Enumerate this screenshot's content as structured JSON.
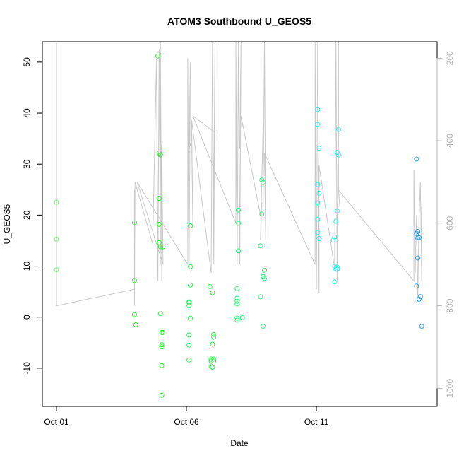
{
  "chart_data": {
    "type": "scatter",
    "title": "ATOM3 Southbound U_GEOS5",
    "xlabel": "Date",
    "ylabel": "U_GEOS5",
    "x_ticks": [
      {
        "day": 1.0,
        "label": "Oct 01"
      },
      {
        "day": 6.0,
        "label": "Oct 06"
      },
      {
        "day": 11.0,
        "label": "Oct 11"
      }
    ],
    "xlim": [
      1.0,
      15.1
    ],
    "ylim": [
      -17.5,
      54
    ],
    "y_ticks": [
      -10,
      0,
      10,
      20,
      30,
      40,
      50
    ],
    "y2_ticks": [
      200,
      400,
      600,
      800,
      1000
    ],
    "y2lim": [
      1044,
      160
    ],
    "y2_color": "#b3b3b3",
    "line_color": "#c8c8c8",
    "grid": false,
    "series": [
      {
        "color": "#6ef06e",
        "points": [
          [
            1.0,
            22.5
          ],
          [
            1.0,
            15.3
          ],
          [
            1.0,
            9.3
          ]
        ]
      },
      {
        "color": "#2ef02e",
        "points": [
          [
            4.0,
            18.5
          ],
          [
            4.0,
            7.2
          ],
          [
            4.0,
            0.5
          ],
          [
            4.05,
            -1.5
          ],
          [
            4.9,
            51.2
          ],
          [
            4.95,
            32.2
          ],
          [
            5.0,
            31.8
          ],
          [
            4.95,
            23.3
          ],
          [
            4.95,
            18.2
          ],
          [
            4.95,
            14.6
          ],
          [
            5.0,
            13.8
          ],
          [
            5.1,
            13.8
          ],
          [
            5.0,
            0.7
          ],
          [
            5.05,
            -3.0
          ],
          [
            5.1,
            -3.0
          ],
          [
            5.05,
            -5.4
          ],
          [
            5.05,
            -5.8
          ],
          [
            5.05,
            -9.5
          ],
          [
            5.05,
            -15.3
          ]
        ]
      },
      {
        "color": "#2ef04e",
        "points": [
          [
            6.15,
            17.9
          ],
          [
            6.15,
            9.9
          ],
          [
            6.15,
            6.3
          ],
          [
            6.1,
            3.0
          ],
          [
            6.1,
            2.8
          ],
          [
            6.1,
            2.2
          ],
          [
            6.15,
            -0.2
          ],
          [
            6.1,
            -3.5
          ],
          [
            6.1,
            -5.5
          ],
          [
            6.1,
            -8.4
          ],
          [
            6.9,
            6.0
          ],
          [
            7.0,
            4.8
          ],
          [
            7.05,
            -3.4
          ],
          [
            7.05,
            -3.9
          ],
          [
            7.0,
            -5.3
          ],
          [
            6.95,
            -8.2
          ],
          [
            7.05,
            -8.2
          ],
          [
            6.95,
            -8.6
          ],
          [
            7.05,
            -8.6
          ],
          [
            6.95,
            -9.6
          ],
          [
            7.0,
            -9.8
          ]
        ]
      },
      {
        "color": "#2ef07a",
        "points": [
          [
            8.0,
            21.0
          ],
          [
            8.0,
            18.4
          ],
          [
            8.0,
            13.0
          ],
          [
            7.95,
            5.6
          ],
          [
            7.95,
            3.7
          ],
          [
            7.95,
            3.1
          ],
          [
            7.95,
            2.6
          ],
          [
            7.95,
            -0.2
          ],
          [
            7.95,
            -0.6
          ],
          [
            8.15,
            -0.1
          ],
          [
            8.9,
            26.9
          ],
          [
            8.95,
            26.4
          ],
          [
            8.9,
            20.2
          ],
          [
            8.85,
            14.0
          ],
          [
            9.0,
            9.2
          ],
          [
            8.95,
            8.0
          ],
          [
            9.0,
            7.6
          ],
          [
            8.85,
            4.0
          ],
          [
            8.95,
            -1.8
          ]
        ]
      },
      {
        "color": "#2ef0e8",
        "points": [
          [
            11.05,
            40.7
          ],
          [
            11.05,
            37.8
          ],
          [
            11.1,
            33.1
          ],
          [
            11.05,
            26.0
          ],
          [
            11.1,
            24.3
          ],
          [
            11.05,
            22.4
          ],
          [
            11.05,
            19.2
          ],
          [
            11.05,
            16.6
          ],
          [
            11.1,
            15.4
          ],
          [
            11.85,
            36.8
          ],
          [
            11.8,
            32.3
          ],
          [
            11.85,
            31.8
          ],
          [
            11.8,
            20.8
          ],
          [
            11.75,
            18.8
          ],
          [
            11.7,
            15.7
          ],
          [
            11.65,
            15.1
          ],
          [
            11.7,
            10.0
          ],
          [
            11.8,
            9.4
          ],
          [
            11.8,
            9.8
          ],
          [
            11.75,
            9.4
          ],
          [
            11.7,
            6.9
          ]
        ]
      },
      {
        "color": "#2ea0f0",
        "points": [
          [
            14.85,
            31.0
          ],
          [
            14.9,
            16.8
          ],
          [
            14.85,
            16.4
          ],
          [
            14.95,
            15.6
          ],
          [
            14.9,
            15.5
          ],
          [
            14.9,
            11.6
          ],
          [
            14.85,
            6.1
          ],
          [
            15.0,
            4.0
          ],
          [
            14.95,
            3.5
          ],
          [
            15.05,
            -1.8
          ]
        ]
      }
    ],
    "line_series": {
      "name": "",
      "points": [
        [
          1.0,
          160
        ],
        [
          1.0,
          800
        ],
        [
          4.0,
          760
        ],
        [
          4.0,
          520
        ],
        [
          4.0,
          800
        ],
        [
          4.02,
          500
        ],
        [
          4.7,
          650
        ],
        [
          4.85,
          200
        ],
        [
          4.9,
          740
        ],
        [
          4.95,
          180
        ],
        [
          5.0,
          700
        ],
        [
          5.0,
          160
        ],
        [
          5.05,
          740
        ],
        [
          5.05,
          410
        ],
        [
          5.1,
          700
        ],
        [
          4.1,
          500
        ],
        [
          6.05,
          700
        ],
        [
          6.05,
          200
        ],
        [
          6.1,
          720
        ],
        [
          6.15,
          210
        ],
        [
          6.1,
          420
        ],
        [
          6.2,
          400
        ],
        [
          6.2,
          380
        ],
        [
          6.25,
          620
        ],
        [
          6.2,
          350
        ],
        [
          6.95,
          720
        ],
        [
          7.0,
          160
        ],
        [
          7.05,
          700
        ],
        [
          7.1,
          160
        ],
        [
          7.05,
          520
        ],
        [
          7.1,
          380
        ],
        [
          6.25,
          340
        ],
        [
          7.9,
          600
        ],
        [
          7.9,
          160
        ],
        [
          7.95,
          700
        ],
        [
          8.0,
          160
        ],
        [
          8.05,
          700
        ],
        [
          8.1,
          160
        ],
        [
          8.05,
          420
        ],
        [
          8.1,
          340
        ],
        [
          8.85,
          580
        ],
        [
          8.9,
          550
        ],
        [
          8.85,
          640
        ],
        [
          8.95,
          360
        ],
        [
          8.95,
          560
        ],
        [
          9.0,
          160
        ],
        [
          9.05,
          640
        ],
        [
          9.0,
          430
        ],
        [
          10.95,
          700
        ],
        [
          10.95,
          160
        ],
        [
          11.0,
          760
        ],
        [
          11.05,
          160
        ],
        [
          11.1,
          770
        ],
        [
          11.1,
          460
        ],
        [
          11.1,
          460
        ],
        [
          11.7,
          710
        ],
        [
          11.75,
          160
        ],
        [
          11.8,
          740
        ],
        [
          11.85,
          160
        ],
        [
          11.85,
          520
        ],
        [
          11.9,
          560
        ],
        [
          11.85,
          520
        ],
        [
          14.75,
          740
        ],
        [
          14.75,
          470
        ],
        [
          14.8,
          720
        ],
        [
          14.85,
          580
        ],
        [
          14.9,
          780
        ],
        [
          14.95,
          580
        ],
        [
          15.0,
          500
        ],
        [
          15.05,
          740
        ],
        [
          15.05,
          560
        ]
      ]
    }
  }
}
